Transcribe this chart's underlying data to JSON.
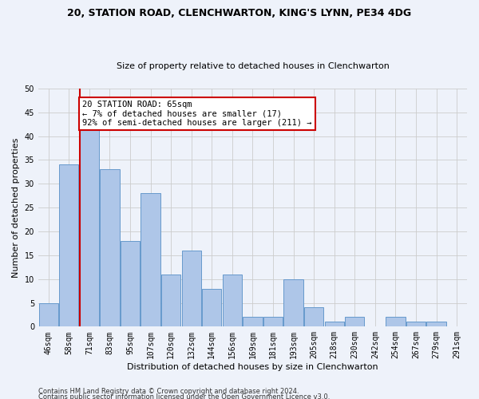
{
  "title_line1": "20, STATION ROAD, CLENCHWARTON, KING'S LYNN, PE34 4DG",
  "title_line2": "Size of property relative to detached houses in Clenchwarton",
  "xlabel": "Distribution of detached houses by size in Clenchwarton",
  "ylabel": "Number of detached properties",
  "footer_line1": "Contains HM Land Registry data © Crown copyright and database right 2024.",
  "footer_line2": "Contains public sector information licensed under the Open Government Licence v3.0.",
  "bin_labels": [
    "46sqm",
    "58sqm",
    "71sqm",
    "83sqm",
    "95sqm",
    "107sqm",
    "120sqm",
    "132sqm",
    "144sqm",
    "156sqm",
    "169sqm",
    "181sqm",
    "193sqm",
    "205sqm",
    "218sqm",
    "230sqm",
    "242sqm",
    "254sqm",
    "267sqm",
    "279sqm",
    "291sqm"
  ],
  "bar_values": [
    5,
    34,
    42,
    33,
    18,
    28,
    11,
    16,
    8,
    11,
    2,
    2,
    10,
    4,
    1,
    2,
    0,
    2,
    1,
    1,
    0
  ],
  "bar_color": "#aec6e8",
  "bar_edge_color": "#6699cc",
  "annotation_title": "20 STATION ROAD: 65sqm",
  "annotation_line1": "← 7% of detached houses are smaller (17)",
  "annotation_line2": "92% of semi-detached houses are larger (211) →",
  "annotation_box_color": "#ffffff",
  "annotation_border_color": "#cc0000",
  "redline_color": "#cc0000",
  "property_bin_index": 1.54,
  "ylim": [
    0,
    50
  ],
  "yticks": [
    0,
    5,
    10,
    15,
    20,
    25,
    30,
    35,
    40,
    45,
    50
  ],
  "grid_color": "#cccccc",
  "bg_color": "#eef2fa",
  "title1_fontsize": 9,
  "title2_fontsize": 8,
  "ylabel_fontsize": 8,
  "xlabel_fontsize": 8,
  "tick_fontsize": 7,
  "footer_fontsize": 6
}
